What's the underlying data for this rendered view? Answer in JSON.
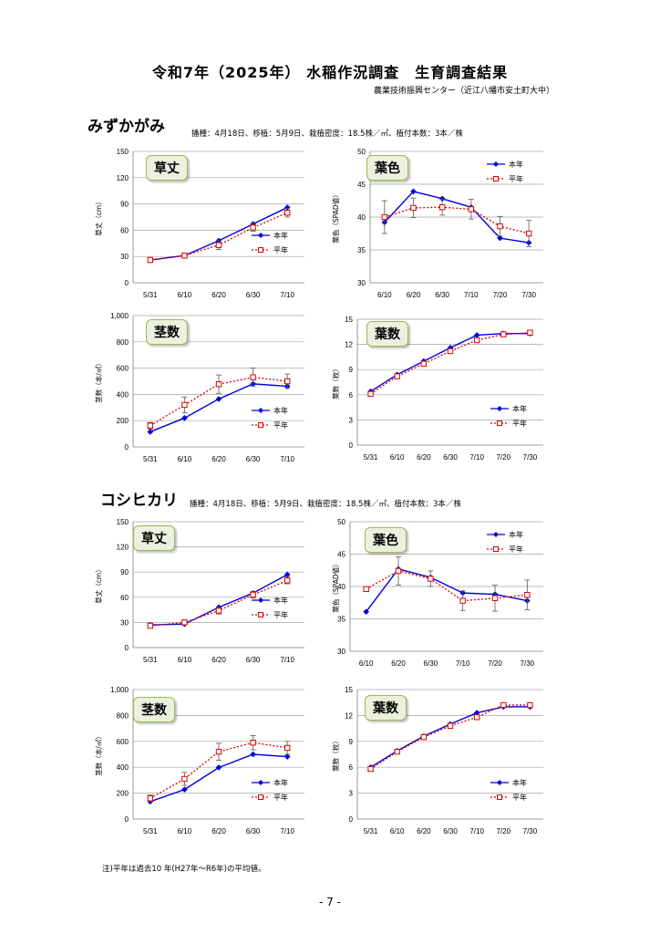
{
  "title": "令和7年（2025年） 水稲作況調査　生育調査結果",
  "subtitle": "農業技術振興センター（近江八幡市安土町大中）",
  "footnote": "注)平年は過去10 年(H27年～R6年)の平均値。",
  "page_number": "- 7 -",
  "colors": {
    "current": "#0000dd",
    "average": "#dd0000",
    "tag_fill": "#ebf1de",
    "tag_border": "#98b954"
  },
  "sections": [
    {
      "name": "みずかがみ",
      "conditions": "播種：4月18日、移植：5月9日、栽植密度：18.5株／㎡、植付本数：3本／株"
    },
    {
      "name": "コシヒカリ",
      "conditions": "播種：4月18日、移植：5月9日、栽植密度：18.5株／㎡、植付本数：3本／株"
    }
  ],
  "chart_data": [
    {
      "id": "m-height",
      "section": "みずかがみ",
      "type": "line",
      "label": "草丈",
      "ylabel": "草丈（cm）",
      "ylim": [
        0,
        150
      ],
      "yticks": [
        "0",
        "30",
        "60",
        "90",
        "120",
        "150"
      ],
      "categories": [
        "5/31",
        "6/10",
        "6/20",
        "6/30",
        "7/10"
      ],
      "grid": true,
      "legend_position": "right",
      "series": [
        {
          "name": "本年",
          "values": [
            26,
            31,
            48,
            67,
            86
          ]
        },
        {
          "name": "平年",
          "values": [
            26,
            31,
            43,
            63,
            80
          ],
          "errors": [
            2,
            3,
            5,
            4,
            5
          ]
        }
      ]
    },
    {
      "id": "m-color",
      "section": "みずかがみ",
      "type": "line",
      "label": "葉色",
      "ylabel": "葉色（SPAD値）",
      "ylim": [
        30,
        50
      ],
      "yticks": [
        "30",
        "35",
        "40",
        "45",
        "50"
      ],
      "categories": [
        "6/10",
        "6/20",
        "6/30",
        "7/10",
        "7/20",
        "7/30"
      ],
      "grid": true,
      "legend_position": "top-right",
      "series": [
        {
          "name": "本年",
          "values": [
            39.2,
            43.9,
            42.8,
            41.5,
            36.8,
            36.1
          ]
        },
        {
          "name": "平年",
          "values": [
            40.0,
            41.4,
            41.5,
            41.2,
            38.6,
            37.5
          ],
          "errors": [
            2.5,
            1.5,
            1.2,
            1.5,
            1.5,
            2.0
          ]
        }
      ]
    },
    {
      "id": "m-stems",
      "section": "みずかがみ",
      "type": "line",
      "label": "茎数",
      "ylabel": "茎数（本/㎡）",
      "ylim": [
        0,
        1000
      ],
      "yticks": [
        "0",
        "200",
        "400",
        "600",
        "800",
        "1,000"
      ],
      "categories": [
        "5/31",
        "6/10",
        "6/20",
        "6/30",
        "7/10"
      ],
      "grid": true,
      "legend_position": "bottom-right",
      "series": [
        {
          "name": "本年",
          "values": [
            115,
            220,
            365,
            480,
            462
          ]
        },
        {
          "name": "平年",
          "values": [
            162,
            320,
            478,
            530,
            500
          ],
          "errors": [
            25,
            60,
            70,
            70,
            55
          ]
        }
      ]
    },
    {
      "id": "m-leaves",
      "section": "みずかがみ",
      "type": "line",
      "label": "葉数",
      "ylabel": "葉数（枚）",
      "ylim": [
        0,
        15
      ],
      "yticks": [
        "0",
        "3",
        "6",
        "9",
        "12",
        "15"
      ],
      "categories": [
        "5/31",
        "6/10",
        "6/20",
        "6/30",
        "7/10",
        "7/20",
        "7/30"
      ],
      "grid": true,
      "legend_position": "bottom-right",
      "series": [
        {
          "name": "本年",
          "values": [
            6.4,
            8.4,
            10.0,
            11.6,
            13.1,
            13.3,
            13.3
          ]
        },
        {
          "name": "平年",
          "values": [
            6.1,
            8.2,
            9.7,
            11.2,
            12.5,
            13.2,
            13.4
          ]
        }
      ]
    },
    {
      "id": "k-height",
      "section": "コシヒカリ",
      "type": "line",
      "label": "草丈",
      "ylabel": "草丈（cm）",
      "ylim": [
        0,
        150
      ],
      "yticks": [
        "0",
        "30",
        "60",
        "90",
        "120",
        "150"
      ],
      "categories": [
        "5/31",
        "6/10",
        "6/20",
        "6/30",
        "7/10"
      ],
      "grid": true,
      "legend_position": "right",
      "series": [
        {
          "name": "本年",
          "values": [
            27,
            28,
            48,
            65,
            87
          ]
        },
        {
          "name": "平年",
          "values": [
            26,
            30,
            44,
            63,
            80
          ],
          "errors": [
            2,
            3,
            4,
            4,
            4
          ]
        }
      ]
    },
    {
      "id": "k-color",
      "section": "コシヒカリ",
      "type": "line",
      "label": "葉色",
      "ylabel": "葉色（SPAD値）",
      "ylim": [
        30,
        50
      ],
      "yticks": [
        "30",
        "35",
        "40",
        "45",
        "50"
      ],
      "categories": [
        "6/10",
        "6/20",
        "6/30",
        "7/10",
        "7/20",
        "7/30"
      ],
      "grid": true,
      "legend_position": "top-right",
      "series": [
        {
          "name": "本年",
          "values": [
            36.1,
            42.7,
            41.4,
            39.0,
            38.8,
            37.8
          ]
        },
        {
          "name": "平年",
          "values": [
            39.6,
            42.4,
            41.2,
            37.8,
            38.2,
            38.7
          ],
          "errors": [
            0,
            2.2,
            1.2,
            1.5,
            2.0,
            2.3
          ]
        }
      ]
    },
    {
      "id": "k-stems",
      "section": "コシヒカリ",
      "type": "line",
      "label": "茎数",
      "ylabel": "茎数（本/㎡）",
      "ylim": [
        0,
        1000
      ],
      "yticks": [
        "0",
        "200",
        "400",
        "600",
        "800",
        "1,000"
      ],
      "categories": [
        "5/31",
        "6/10",
        "6/20",
        "6/30",
        "7/10"
      ],
      "grid": true,
      "legend_position": "bottom-right",
      "series": [
        {
          "name": "本年",
          "values": [
            135,
            228,
            398,
            500,
            482
          ]
        },
        {
          "name": "平年",
          "values": [
            160,
            310,
            520,
            590,
            550
          ],
          "errors": [
            25,
            50,
            65,
            55,
            50
          ]
        }
      ]
    },
    {
      "id": "k-leaves",
      "section": "コシヒカリ",
      "type": "line",
      "label": "葉数",
      "ylabel": "葉数（枚）",
      "ylim": [
        0,
        15
      ],
      "yticks": [
        "0",
        "3",
        "6",
        "9",
        "12",
        "15"
      ],
      "categories": [
        "5/31",
        "6/10",
        "6/20",
        "6/30",
        "7/10",
        "7/20",
        "7/30"
      ],
      "grid": true,
      "legend_position": "bottom-right",
      "series": [
        {
          "name": "本年",
          "values": [
            6.0,
            7.9,
            9.6,
            11.0,
            12.3,
            13.0,
            13.0
          ]
        },
        {
          "name": "平年",
          "values": [
            5.8,
            7.8,
            9.5,
            10.8,
            11.8,
            13.2,
            13.2
          ]
        }
      ]
    }
  ]
}
